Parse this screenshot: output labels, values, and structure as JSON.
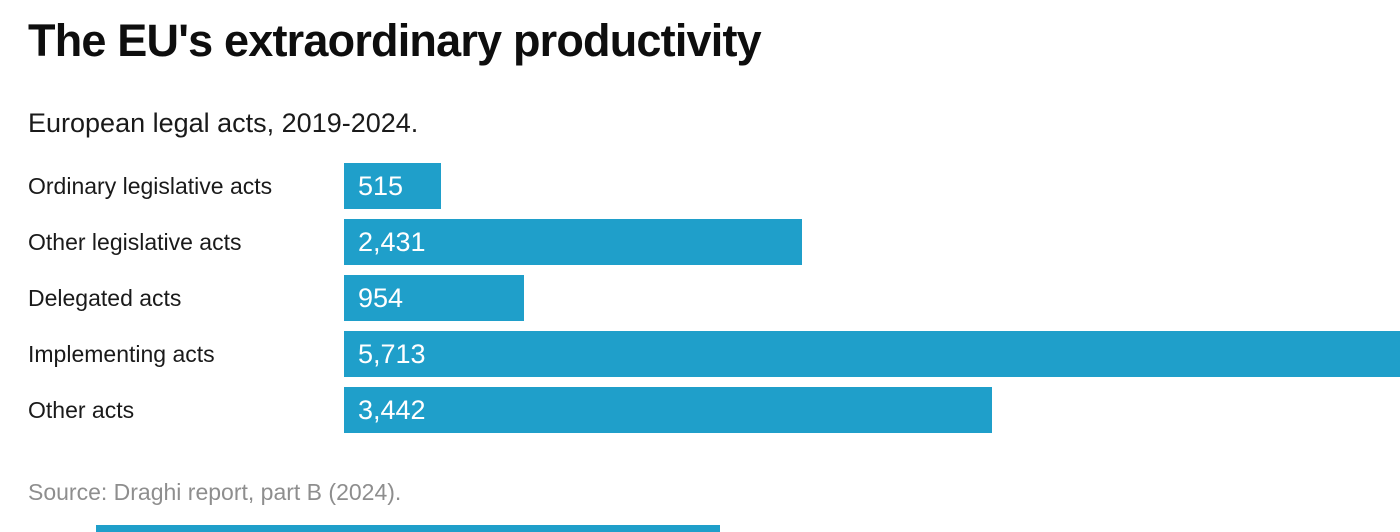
{
  "chart_data": {
    "type": "bar",
    "orientation": "horizontal",
    "title": "The EU's extraordinary productivity",
    "subtitle": "European legal acts, 2019-2024.",
    "categories": [
      "Ordinary legislative acts",
      "Other legislative acts",
      "Delegated acts",
      "Implementing acts",
      "Other acts"
    ],
    "values": [
      515,
      2431,
      954,
      5713,
      3442
    ],
    "value_labels": [
      "515",
      "2,431",
      "954",
      "5,713",
      "3,442"
    ],
    "xlim": [
      0,
      5713
    ],
    "grid": "off",
    "legend": "none",
    "source": "Source: Draghi report, part B (2024).",
    "colors": {
      "bar": "#1f9fca",
      "value_label": "#ffffff",
      "title_text": "#0e0e0e",
      "body_text": "#1a1a1a",
      "source_text": "#8e8e8e"
    }
  }
}
